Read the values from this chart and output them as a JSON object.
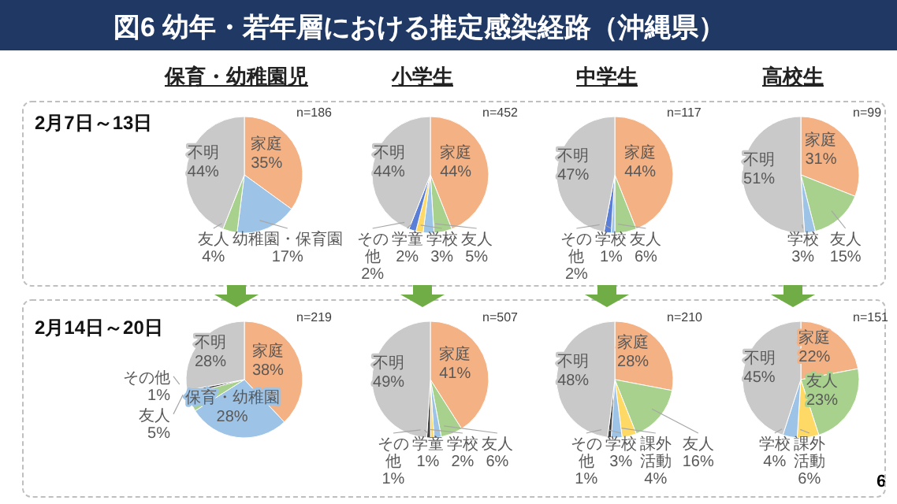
{
  "chart_data": [
    {
      "type": "pie",
      "title": "保育・幼稚園児",
      "subtitle": "2月7日～13日",
      "annotations": [
        "n=186",
        "図6 幼年・若年層における推定感染経路（沖縄県）"
      ],
      "categories": [
        "家庭",
        "幼稚園・保育園",
        "友人",
        "不明"
      ],
      "values": [
        35,
        17,
        4,
        44
      ],
      "value_labels": [
        "35%",
        "17%",
        "4%",
        "44%"
      ],
      "colors": [
        "#f4b183",
        "#9dc3e6",
        "#a9d18e",
        "#c9c9c9"
      ]
    },
    {
      "type": "pie",
      "title": "小学生",
      "annotations": [
        "n=452"
      ],
      "categories": [
        "家庭",
        "友人",
        "学校",
        "学童",
        "その他",
        "不明"
      ],
      "values": [
        44,
        5,
        3,
        2,
        2,
        44
      ],
      "value_labels": [
        "44%",
        "5%",
        "3%",
        "2%",
        "2%",
        "44%"
      ],
      "colors": [
        "#f4b183",
        "#a9d18e",
        "#9dc3e6",
        "#ffd966",
        "#5b7fd6",
        "#c9c9c9"
      ]
    },
    {
      "type": "pie",
      "title": "中学生",
      "annotations": [
        "n=117"
      ],
      "categories": [
        "家庭",
        "友人",
        "学校",
        "その他",
        "不明"
      ],
      "values": [
        44,
        6,
        1,
        2,
        47
      ],
      "value_labels": [
        "44%",
        "6%",
        "1%",
        "2%",
        "47%"
      ],
      "colors": [
        "#f4b183",
        "#a9d18e",
        "#9dc3e6",
        "#5b7fd6",
        "#c9c9c9"
      ]
    },
    {
      "type": "pie",
      "title": "高校生",
      "annotations": [
        "n=99"
      ],
      "categories": [
        "家庭",
        "友人",
        "学校",
        "不明"
      ],
      "values": [
        31,
        15,
        3,
        51
      ],
      "value_labels": [
        "31%",
        "15%",
        "3%",
        "51%"
      ],
      "colors": [
        "#f4b183",
        "#a9d18e",
        "#9dc3e6",
        "#c9c9c9"
      ]
    },
    {
      "type": "pie",
      "subtitle": "2月14日～20日",
      "annotations": [
        "n=219"
      ],
      "categories": [
        "家庭",
        "保育・幼稚園",
        "友人",
        "その他",
        "不明"
      ],
      "values": [
        38,
        28,
        5,
        1,
        28
      ],
      "value_labels": [
        "38%",
        "28%",
        "5%",
        "1%",
        "28%"
      ],
      "colors": [
        "#f4b183",
        "#9dc3e6",
        "#a9d18e",
        "#404040",
        "#c9c9c9"
      ]
    },
    {
      "type": "pie",
      "annotations": [
        "n=507"
      ],
      "categories": [
        "家庭",
        "友人",
        "学校",
        "学童",
        "その他",
        "不明"
      ],
      "values": [
        41,
        6,
        2,
        1,
        1,
        49
      ],
      "value_labels": [
        "41%",
        "6%",
        "2%",
        "1%",
        "1%",
        "49%"
      ],
      "colors": [
        "#f4b183",
        "#a9d18e",
        "#9dc3e6",
        "#ffd966",
        "#404040",
        "#c9c9c9"
      ]
    },
    {
      "type": "pie",
      "annotations": [
        "n=210"
      ],
      "categories": [
        "家庭",
        "友人",
        "課外活動",
        "学校",
        "その他",
        "不明"
      ],
      "values": [
        28,
        16,
        4,
        3,
        1,
        48
      ],
      "value_labels": [
        "28%",
        "16%",
        "4%",
        "3%",
        "1%",
        "48%"
      ],
      "colors": [
        "#f4b183",
        "#a9d18e",
        "#ffd966",
        "#9dc3e6",
        "#404040",
        "#c9c9c9"
      ]
    },
    {
      "type": "pie",
      "annotations": [
        "n=151",
        "6"
      ],
      "categories": [
        "家庭",
        "友人",
        "課外活動",
        "学校",
        "不明"
      ],
      "values": [
        22,
        23,
        6,
        4,
        45
      ],
      "value_labels": [
        "22%",
        "23%",
        "6%",
        "4%",
        "45%"
      ],
      "colors": [
        "#f4b183",
        "#a9d18e",
        "#ffd966",
        "#9dc3e6",
        "#c9c9c9"
      ]
    }
  ]
}
